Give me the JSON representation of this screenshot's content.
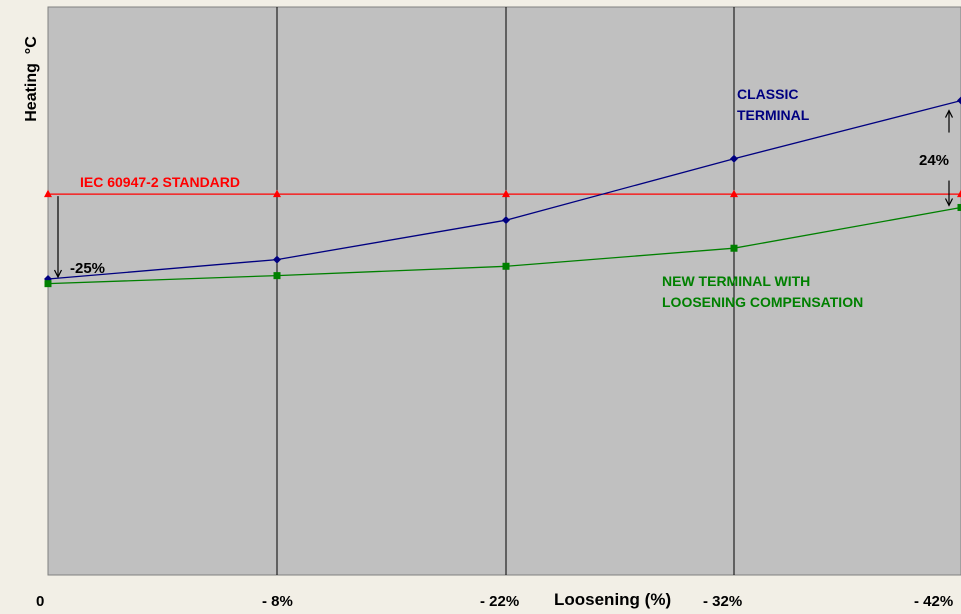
{
  "chart_data": {
    "type": "line",
    "title": "",
    "xlabel": "Loosening (%)",
    "ylabel": "Heating  °C",
    "categories": [
      "0",
      "- 8%",
      "- 22%",
      "- 32%",
      "- 42%"
    ],
    "yaxis_ticks_printed": false,
    "grid": "vertical",
    "plot_background": "#c0c0c0",
    "page_background": "#f2efe6",
    "series": [
      {
        "name": "CLASSIC TERMINAL",
        "color": "#000080",
        "marker": "diamond",
        "values": [
          18.3,
          21.2,
          27.1,
          36.3,
          45.0
        ]
      },
      {
        "name": "NEW TERMINAL WITH LOOSENING COMPENSATION",
        "color": "#008000",
        "marker": "square",
        "values": [
          17.6,
          18.8,
          20.2,
          22.9,
          29.0
        ]
      },
      {
        "name": "IEC 60947-2 STANDARD",
        "color": "#ff0000",
        "marker": "triangle",
        "values": [
          31.0,
          31.0,
          31.0,
          31.0,
          31.0
        ]
      }
    ],
    "ylim": [
      -26,
      59
    ],
    "annotations": [
      {
        "text": "-25%",
        "between": "IEC 60947-2 STANDARD and CLASSIC TERMINAL at 0"
      },
      {
        "text": "24%",
        "between": "CLASSIC TERMINAL and NEW TERMINAL WITH LOOSENING COMPENSATION at - 42%"
      }
    ],
    "series_label_lines": {
      "classic": [
        "CLASSIC",
        "TERMINAL"
      ],
      "new": [
        "NEW TERMINAL WITH",
        "LOOSENING COMPENSATION"
      ],
      "standard": [
        "IEC 60947-2 STANDARD"
      ]
    }
  }
}
